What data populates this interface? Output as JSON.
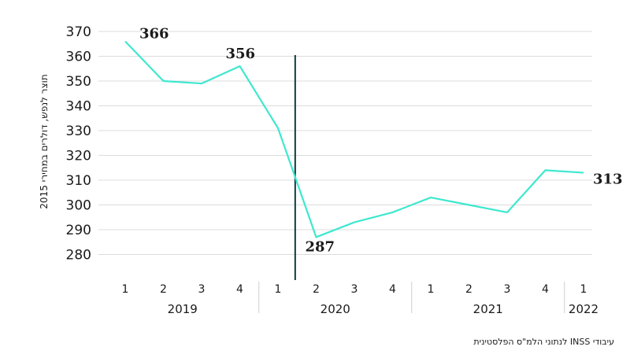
{
  "chart_data": {
    "type": "line",
    "ylabel": "תוצר לנפש, דולרים במחירי 2015",
    "ylim": [
      270,
      370
    ],
    "yticks": [
      280,
      290,
      300,
      310,
      320,
      330,
      340,
      350,
      360,
      370
    ],
    "grid": true,
    "x": [
      "1",
      "2",
      "3",
      "4",
      "1",
      "2",
      "3",
      "4",
      "1",
      "2",
      "3",
      "4",
      "1"
    ],
    "years": [
      {
        "label": "2019",
        "span": [
          0,
          3
        ]
      },
      {
        "label": "2020",
        "span": [
          4,
          7
        ]
      },
      {
        "label": "2021",
        "span": [
          8,
          11
        ]
      },
      {
        "label": "2022",
        "span": [
          12,
          12
        ]
      }
    ],
    "series": [
      {
        "values": [
          366,
          350,
          349,
          356,
          331,
          287,
          293,
          297,
          303,
          300,
          297,
          314,
          313
        ],
        "color": "#3ee8cf"
      }
    ],
    "data_labels": [
      {
        "index": 0,
        "text": "366"
      },
      {
        "index": 3,
        "text": "356"
      },
      {
        "index": 5,
        "text": "287"
      },
      {
        "index": 12,
        "text": "313"
      }
    ],
    "marker_line_after_index": 4,
    "marker_color": "#0d3b3b"
  },
  "source": "עיבודי INSS לנתוני הלמ\"ס הפלסטינית"
}
